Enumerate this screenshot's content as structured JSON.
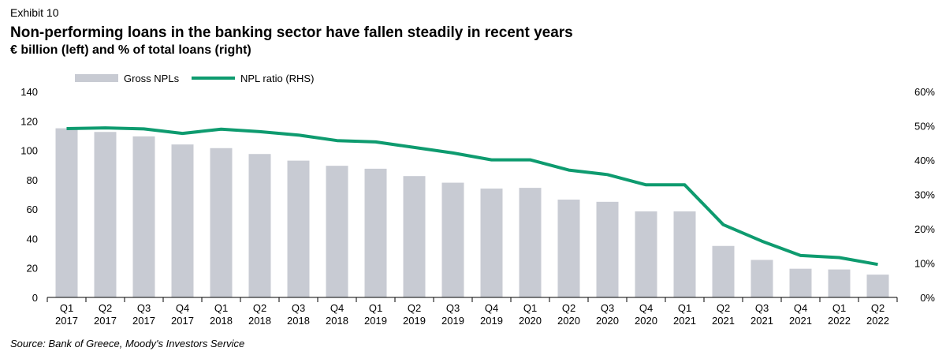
{
  "header": {
    "exhibit": "Exhibit 10",
    "title": "Non-performing loans in the banking sector have fallen steadily in recent years",
    "subtitle": "€ billion (left) and % of total loans (right)"
  },
  "footer": {
    "source": "Source: Bank of Greece, Moody's Investors Service"
  },
  "colors": {
    "bars": "#c8cbd3",
    "line": "#0e9b6f"
  },
  "chart_data": {
    "type": "bar",
    "categories": [
      [
        "Q1",
        "2017"
      ],
      [
        "Q2",
        "2017"
      ],
      [
        "Q3",
        "2017"
      ],
      [
        "Q4",
        "2017"
      ],
      [
        "Q1",
        "2018"
      ],
      [
        "Q2",
        "2018"
      ],
      [
        "Q3",
        "2018"
      ],
      [
        "Q4",
        "2018"
      ],
      [
        "Q1",
        "2019"
      ],
      [
        "Q2",
        "2019"
      ],
      [
        "Q3",
        "2019"
      ],
      [
        "Q4",
        "2019"
      ],
      [
        "Q1",
        "2020"
      ],
      [
        "Q2",
        "2020"
      ],
      [
        "Q3",
        "2020"
      ],
      [
        "Q4",
        "2020"
      ],
      [
        "Q1",
        "2021"
      ],
      [
        "Q2",
        "2021"
      ],
      [
        "Q3",
        "2021"
      ],
      [
        "Q4",
        "2021"
      ],
      [
        "Q1",
        "2022"
      ],
      [
        "Q2",
        "2022"
      ]
    ],
    "series": [
      {
        "name": "Gross NPLs",
        "type": "bar",
        "axis": "left",
        "values": [
          115,
          112.5,
          109.5,
          104,
          101.5,
          97.5,
          93,
          89.5,
          87.5,
          82.5,
          78,
          74,
          74.5,
          66.5,
          65,
          58.5,
          58.5,
          35,
          25.5,
          19.5,
          19,
          15.5
        ]
      },
      {
        "name": "NPL ratio (RHS)",
        "type": "line",
        "axis": "right",
        "values": [
          49.2,
          49.4,
          49.1,
          47.8,
          49.0,
          48.3,
          47.3,
          45.7,
          45.3,
          43.7,
          42.1,
          40.1,
          40.1,
          37.1,
          35.8,
          32.8,
          32.8,
          21.2,
          16.4,
          12.2,
          11.6,
          9.6
        ]
      }
    ],
    "y_left": {
      "min": 0,
      "max": 140,
      "step": 20,
      "ticks": [
        "0",
        "20",
        "40",
        "60",
        "80",
        "100",
        "120",
        "140"
      ]
    },
    "y_right": {
      "min": 0,
      "max": 60,
      "step": 10,
      "ticks": [
        "0%",
        "10%",
        "20%",
        "30%",
        "40%",
        "50%",
        "60%"
      ]
    },
    "legend": {
      "placement": "top-left",
      "items": [
        "Gross NPLs",
        "NPL ratio (RHS)"
      ]
    },
    "grid": false
  }
}
